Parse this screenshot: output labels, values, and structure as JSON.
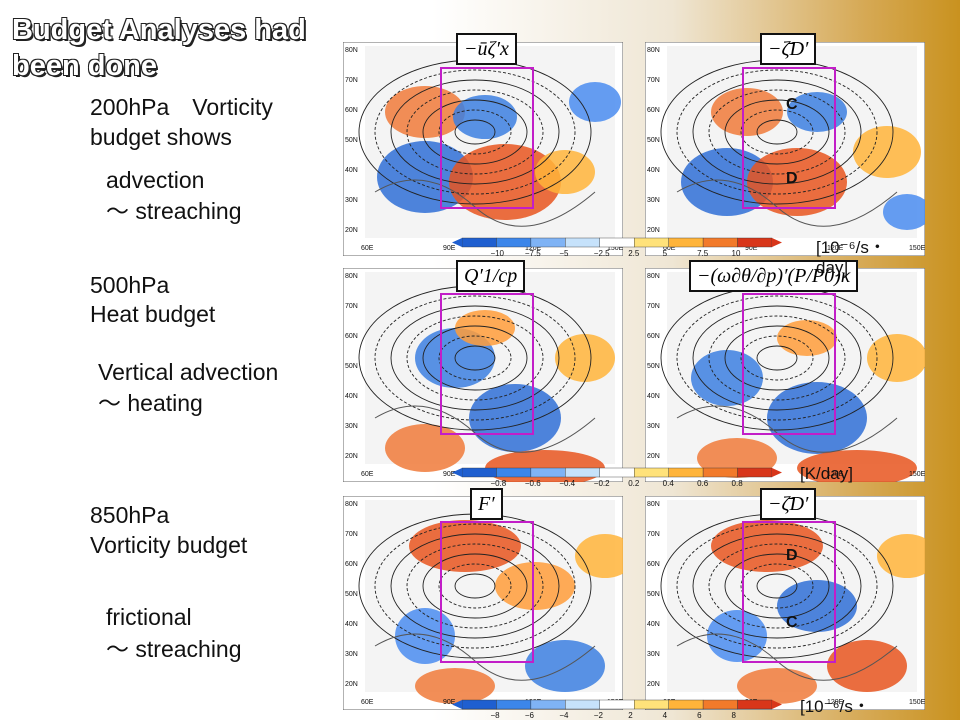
{
  "title": "Budget Analyses had been done",
  "left": {
    "t200": "200hPa　Vorticity budget shows",
    "advection": "advection",
    "streaching1": "〜 streaching",
    "t500a": "500hPa",
    "t500b": "Heat budget",
    "vadv": "Vertical advection",
    "heating": "〜 heating",
    "t850a": "850hPa",
    "t850b": "Vorticity budget",
    "frictional": "frictional",
    "streaching2": "〜 streaching"
  },
  "labels": {
    "p1": "−ūζ′x",
    "p2": "−ζ̄D′",
    "p3": "Q′1/cp",
    "p4": "−(ω∂θ/∂p)′(P/P0)κ",
    "p5": "F′",
    "p6": "−ζ̄D′"
  },
  "markers": {
    "c1": "C",
    "d1": "D",
    "d2": "D",
    "c2": "C"
  },
  "units": {
    "u1": "[10⁻⁶/s・ day]",
    "u2": "[K/day]",
    "u3": "[10⁻⁶/s・"
  },
  "axis": {
    "lat": [
      "80N",
      "70N",
      "60N",
      "50N",
      "40N",
      "30N",
      "20N"
    ],
    "lon": [
      "60E",
      "90E",
      "120E",
      "150E"
    ]
  },
  "colorbars": {
    "cb1": [
      "−10",
      "−7.5",
      "−5",
      "−2.5",
      "2.5",
      "5",
      "7.5",
      "10"
    ],
    "cb2": [
      "−0.8",
      "−0.6",
      "−0.4",
      "−0.2",
      "0.2",
      "0.4",
      "0.6",
      "0.8"
    ],
    "cb3": [
      "−8",
      "−6",
      "−4",
      "−2",
      "2",
      "4",
      "6",
      "8"
    ]
  }
}
